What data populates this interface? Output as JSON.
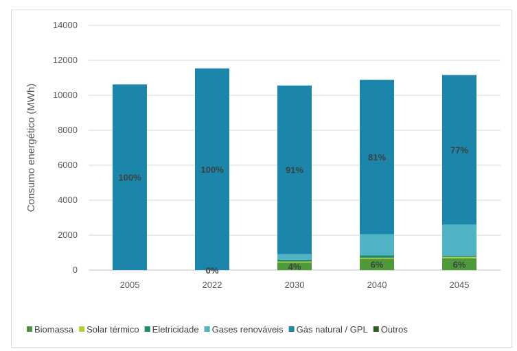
{
  "chart_data": {
    "type": "bar",
    "stacked": true,
    "title": "",
    "xlabel": "",
    "ylabel": "Consumo energético (MWh)",
    "ylim": [
      0,
      14000
    ],
    "yticks": [
      0,
      2000,
      4000,
      6000,
      8000,
      10000,
      12000,
      14000
    ],
    "grid": true,
    "legend_position": "bottom",
    "categories": [
      "2005",
      "2022",
      "2030",
      "2040",
      "2045"
    ],
    "series": [
      {
        "name": "Biomassa",
        "color": "#4e9a3a",
        "values": [
          0,
          0,
          430,
          650,
          680
        ]
      },
      {
        "name": "Solar térmico",
        "color": "#b5cf3a",
        "values": [
          0,
          0,
          60,
          60,
          70
        ]
      },
      {
        "name": "Eletricidade",
        "color": "#1f8a70",
        "values": [
          0,
          0,
          110,
          140,
          60
        ]
      },
      {
        "name": "Gases renováveis",
        "color": "#4fb3c4",
        "values": [
          0,
          0,
          320,
          1200,
          1800
        ]
      },
      {
        "name": "Gás natural / GPL",
        "color": "#1b86a9",
        "values": [
          10620,
          11540,
          9640,
          8830,
          8550
        ]
      },
      {
        "name": "Outros",
        "color": "#2e5e1e",
        "values": [
          0,
          0,
          0,
          0,
          0
        ]
      }
    ],
    "data_labels": [
      {
        "category": "2005",
        "series": "Gás natural / GPL",
        "text": "100%"
      },
      {
        "category": "2022",
        "series": "Gás natural / GPL",
        "text": "100%"
      },
      {
        "category": "2022",
        "series": "Biomassa",
        "text": "0%"
      },
      {
        "category": "2030",
        "series": "Gás natural / GPL",
        "text": "91%"
      },
      {
        "category": "2030",
        "series": "Biomassa",
        "text": "4%"
      },
      {
        "category": "2040",
        "series": "Gás natural / GPL",
        "text": "81%"
      },
      {
        "category": "2040",
        "series": "Biomassa",
        "text": "6%"
      },
      {
        "category": "2045",
        "series": "Gás natural / GPL",
        "text": "77%"
      },
      {
        "category": "2045",
        "series": "Biomassa",
        "text": "6%"
      }
    ],
    "colors": {
      "grid": "#d9d9d9",
      "axis": "#bfbfbf"
    }
  }
}
